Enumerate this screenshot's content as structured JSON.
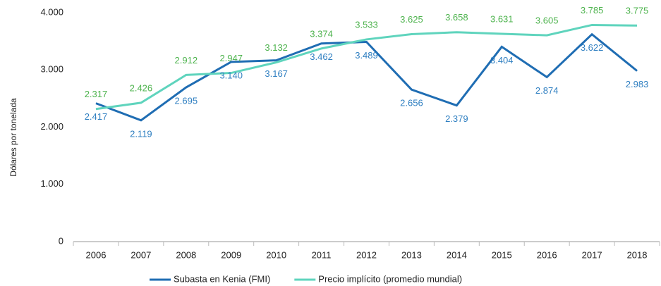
{
  "chart_data": {
    "type": "line",
    "y_label": "Dólares por tonelada",
    "categories": [
      "2006",
      "2007",
      "2008",
      "2009",
      "2010",
      "2011",
      "2012",
      "2013",
      "2014",
      "2015",
      "2016",
      "2017",
      "2018"
    ],
    "series": [
      {
        "name": "Subasta en Kenia (FMI)",
        "color": "#1f6db3",
        "label_color": "#2f7fc1",
        "values": [
          2417,
          2119,
          2695,
          3140,
          3167,
          3462,
          3489,
          2656,
          2379,
          3404,
          2874,
          3622,
          2983
        ],
        "value_labels": [
          "2.417",
          "2.119",
          "2.695",
          "3.140",
          "3.167",
          "3.462",
          "3.489",
          "2.656",
          "2.379",
          "3.404",
          "2.874",
          "3.622",
          "2.983"
        ]
      },
      {
        "name": "Precio implícito (promedio mundial)",
        "color": "#5fd4bd",
        "label_color": "#4db34d",
        "values": [
          2317,
          2426,
          2912,
          2947,
          3132,
          3374,
          3533,
          3625,
          3658,
          3631,
          3605,
          3785,
          3775
        ],
        "value_labels": [
          "2.317",
          "2.426",
          "2.912",
          "2.947",
          "3.132",
          "3.374",
          "3.533",
          "3.625",
          "3.658",
          "3.631",
          "3.605",
          "3.785",
          "3.775"
        ]
      }
    ],
    "ylim": [
      0,
      4000
    ],
    "yticks": [
      0,
      {
        "value": 1000,
        "label": "1.000"
      },
      {
        "value": 2000,
        "label": "2.000"
      },
      {
        "value": 3000,
        "label": "3.000"
      },
      {
        "value": 4000,
        "label": "4.000"
      }
    ],
    "grid": false
  }
}
